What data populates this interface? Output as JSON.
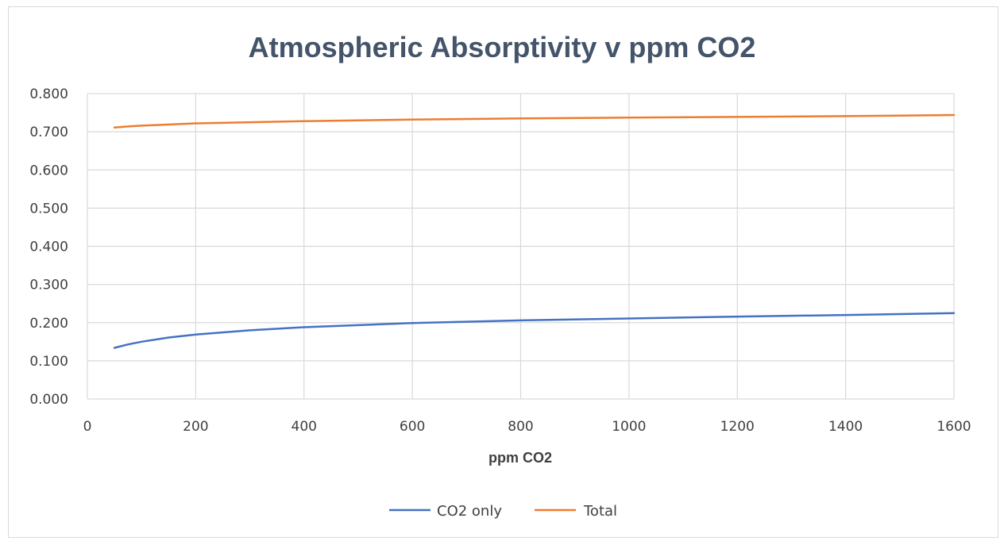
{
  "chart_data": {
    "type": "line",
    "title": "Atmospheric Absorptivity v ppm CO2",
    "xlabel": "ppm CO2",
    "ylabel": "",
    "xlim": [
      0,
      1600
    ],
    "ylim": [
      0,
      0.8
    ],
    "x_ticks": [
      "0",
      "200",
      "400",
      "600",
      "800",
      "1000",
      "1200",
      "1400",
      "1600"
    ],
    "y_ticks": [
      "0.000",
      "0.100",
      "0.200",
      "0.300",
      "0.400",
      "0.500",
      "0.600",
      "0.700",
      "0.800"
    ],
    "grid": true,
    "legend_position": "bottom",
    "series": [
      {
        "name": "CO2 only",
        "color": "#4472c4",
        "x": [
          50,
          75,
          100,
          150,
          200,
          300,
          400,
          600,
          800,
          1000,
          1200,
          1400,
          1600
        ],
        "y": [
          0.134,
          0.143,
          0.15,
          0.161,
          0.169,
          0.18,
          0.188,
          0.199,
          0.206,
          0.211,
          0.216,
          0.22,
          0.225
        ]
      },
      {
        "name": "Total",
        "color": "#ed7d31",
        "x": [
          50,
          75,
          100,
          150,
          200,
          300,
          400,
          600,
          800,
          1000,
          1200,
          1400,
          1600
        ],
        "y": [
          0.711,
          0.714,
          0.716,
          0.719,
          0.722,
          0.725,
          0.728,
          0.732,
          0.735,
          0.737,
          0.739,
          0.741,
          0.744
        ]
      }
    ]
  }
}
